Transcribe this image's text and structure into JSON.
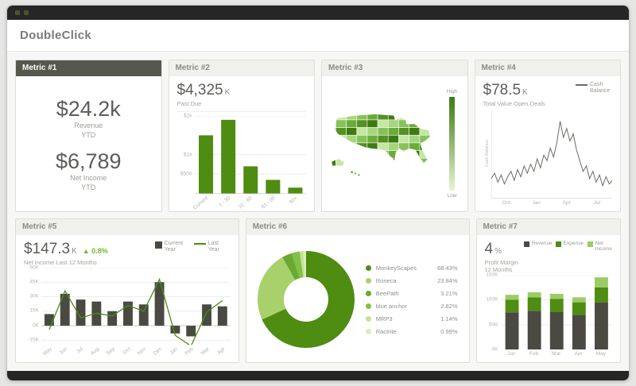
{
  "app": {
    "title": "DoubleClick"
  },
  "cards": {
    "metric1": {
      "title": "Metric #1",
      "value1": "$24.2k",
      "label1": "Revenue",
      "sublabel1": "YTD",
      "value2": "$6,789",
      "label2": "Net Income",
      "sublabel2": "YTD"
    },
    "metric2": {
      "title": "Metric #2",
      "value": "$4,325",
      "unit": "K",
      "subtitle": "Past Due"
    },
    "metric3": {
      "title": "Metric #3",
      "legend_high": "High",
      "legend_low": "Low"
    },
    "metric4": {
      "title": "Metric #4",
      "value": "$78.5",
      "unit": "K",
      "subtitle": "Total Value Open Deals",
      "legend": "Cash Balance",
      "axis_label": "Cash Balance"
    },
    "metric5": {
      "title": "Metric #5",
      "value": "$147.3",
      "unit": "K",
      "delta": "▲ 0.8%",
      "subtitle": "Net Income Last 12 Months",
      "legend_bar": "Current Year",
      "legend_line": "Last Year"
    },
    "metric6": {
      "title": "Metric #6"
    },
    "metric7": {
      "title": "Metric #7",
      "value": "4",
      "unit": "%",
      "subtitle": "Profit Margin 12 Months"
    }
  },
  "chart_data": {
    "metric2": {
      "type": "bar",
      "categories": [
        "Current",
        "1 - 30",
        "31 - 60",
        "61 - 90",
        "90+"
      ],
      "values": [
        1500,
        1900,
        700,
        350,
        150
      ],
      "ymax": 2000,
      "yticks": [
        {
          "label": "$2k",
          "value": 2000
        },
        {
          "label": "$1k",
          "value": 1000
        },
        {
          "label": "$500",
          "value": 500
        }
      ],
      "color": "#4e8c12"
    },
    "metric3": {
      "type": "heatmap",
      "title": "US choropleth map",
      "legend": [
        "High",
        "Low"
      ],
      "shades": [
        "#3e7a10",
        "#539224",
        "#6cab3b",
        "#87c258",
        "#a6d67e",
        "#c6e6a4"
      ]
    },
    "metric4": {
      "type": "line",
      "series_name": "Cash Balance",
      "values": [
        56,
        59,
        54,
        58,
        53,
        57,
        60,
        55,
        61,
        57,
        63,
        59,
        64,
        60,
        67,
        62,
        69,
        66,
        73,
        68,
        76,
        88,
        79,
        84,
        77,
        81,
        72,
        66,
        60,
        63,
        56,
        60,
        54,
        58,
        52,
        57,
        53,
        55
      ],
      "xticks": [
        "Oct",
        "Jan",
        "Apr",
        "Jul"
      ],
      "ymin": 45,
      "ymax": 95,
      "color": "#6b6b66"
    },
    "metric5": {
      "type": "bar+line",
      "categories": [
        "May",
        "Jun",
        "Jul",
        "Aug",
        "Sep",
        "Oct",
        "Nov",
        "Dec",
        "Jan",
        "Feb",
        "Mar",
        "Apr"
      ],
      "bars": [
        12,
        33,
        27,
        25,
        15,
        25,
        22,
        45,
        -8,
        -11,
        22,
        20
      ],
      "line": [
        -4,
        36,
        8,
        13,
        10,
        21,
        15,
        48,
        -10,
        -21,
        14,
        26
      ],
      "bar_series": "Current Year",
      "line_series": "Last Year",
      "ymin": -20,
      "ymax": 60,
      "yticks": [
        {
          "label": "60K",
          "value": 60
        },
        {
          "label": "45K",
          "value": 45
        },
        {
          "label": "30K",
          "value": 30
        },
        {
          "label": "15K",
          "value": 15
        },
        {
          "label": "0K",
          "value": 0
        },
        {
          "label": "-15K",
          "value": -15
        }
      ],
      "bar_color": "#4a4a43",
      "line_color": "#4e8c12"
    },
    "metric6": {
      "type": "pie",
      "items": [
        {
          "label": "MonkeyScapes",
          "pct": "68.43%",
          "value": 68.43,
          "color": "#4e8c12"
        },
        {
          "label": "Roneca",
          "pct": "23.84%",
          "value": 23.84,
          "color": "#a8d16c"
        },
        {
          "label": "BeePath",
          "pct": "3.21%",
          "value": 3.21,
          "color": "#6aa832"
        },
        {
          "label": "blue anchor",
          "pct": "2.82%",
          "value": 2.82,
          "color": "#85bf4a"
        },
        {
          "label": "MRP3",
          "pct": "1.14%",
          "value": 1.14,
          "color": "#c3e395"
        },
        {
          "label": "Ractrite",
          "pct": "0.99%",
          "value": 0.99,
          "color": "#d9efbc"
        }
      ]
    },
    "metric7": {
      "type": "stacked-bar",
      "categories": [
        "Jan",
        "Feb",
        "Mar",
        "Apr",
        "May"
      ],
      "series": [
        {
          "name": "Revenue",
          "color": "#4a4a43",
          "values": [
            75,
            78,
            76,
            70,
            95
          ]
        },
        {
          "name": "Expense",
          "color": "#4e8c12",
          "values": [
            25,
            27,
            26,
            25,
            30
          ]
        },
        {
          "name": "Net Income",
          "color": "#9ccc65",
          "values": [
            10,
            10,
            10,
            10,
            20
          ]
        }
      ],
      "ymax": 150,
      "yticks": [
        {
          "label": "150K",
          "value": 150
        },
        {
          "label": "100K",
          "value": 100
        },
        {
          "label": "50K",
          "value": 50
        },
        {
          "label": "0K",
          "value": 0
        }
      ]
    }
  },
  "colors": {
    "accent_green": "#4e8c12",
    "dark_bar": "#4a4a43",
    "titlebar": "#262626"
  }
}
